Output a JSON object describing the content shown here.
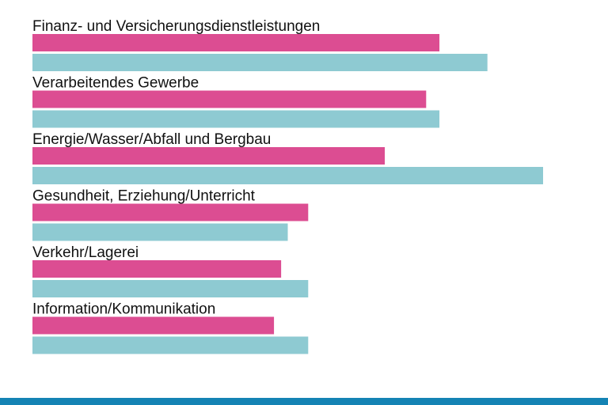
{
  "colors": {
    "series_a": "#dc4d92",
    "series_b": "#8ecad2",
    "stripe": "#1483b4"
  },
  "chart_data": {
    "type": "bar",
    "orientation": "horizontal",
    "title": "",
    "xlabel": "",
    "ylabel": "",
    "xlim": [
      0,
      100
    ],
    "grid": false,
    "legend": "none",
    "categories": [
      "Finanz- und Versicherungsdienstleistungen",
      "Verarbeitendes Gewerbe",
      "Energie/Wasser/Abfall und Bergbau",
      "Gesundheit, Erziehung/Unterricht",
      "Verkehr/Lagerei",
      "Information/Kommunikation"
    ],
    "series": [
      {
        "name": "series-a",
        "color": "#dc4d92",
        "values": [
          79.7,
          77.1,
          69.0,
          54.0,
          48.7,
          47.3
        ]
      },
      {
        "name": "series-b",
        "color": "#8ecad2",
        "values": [
          89.1,
          79.7,
          100.0,
          50.0,
          54.0,
          54.0
        ]
      }
    ]
  }
}
